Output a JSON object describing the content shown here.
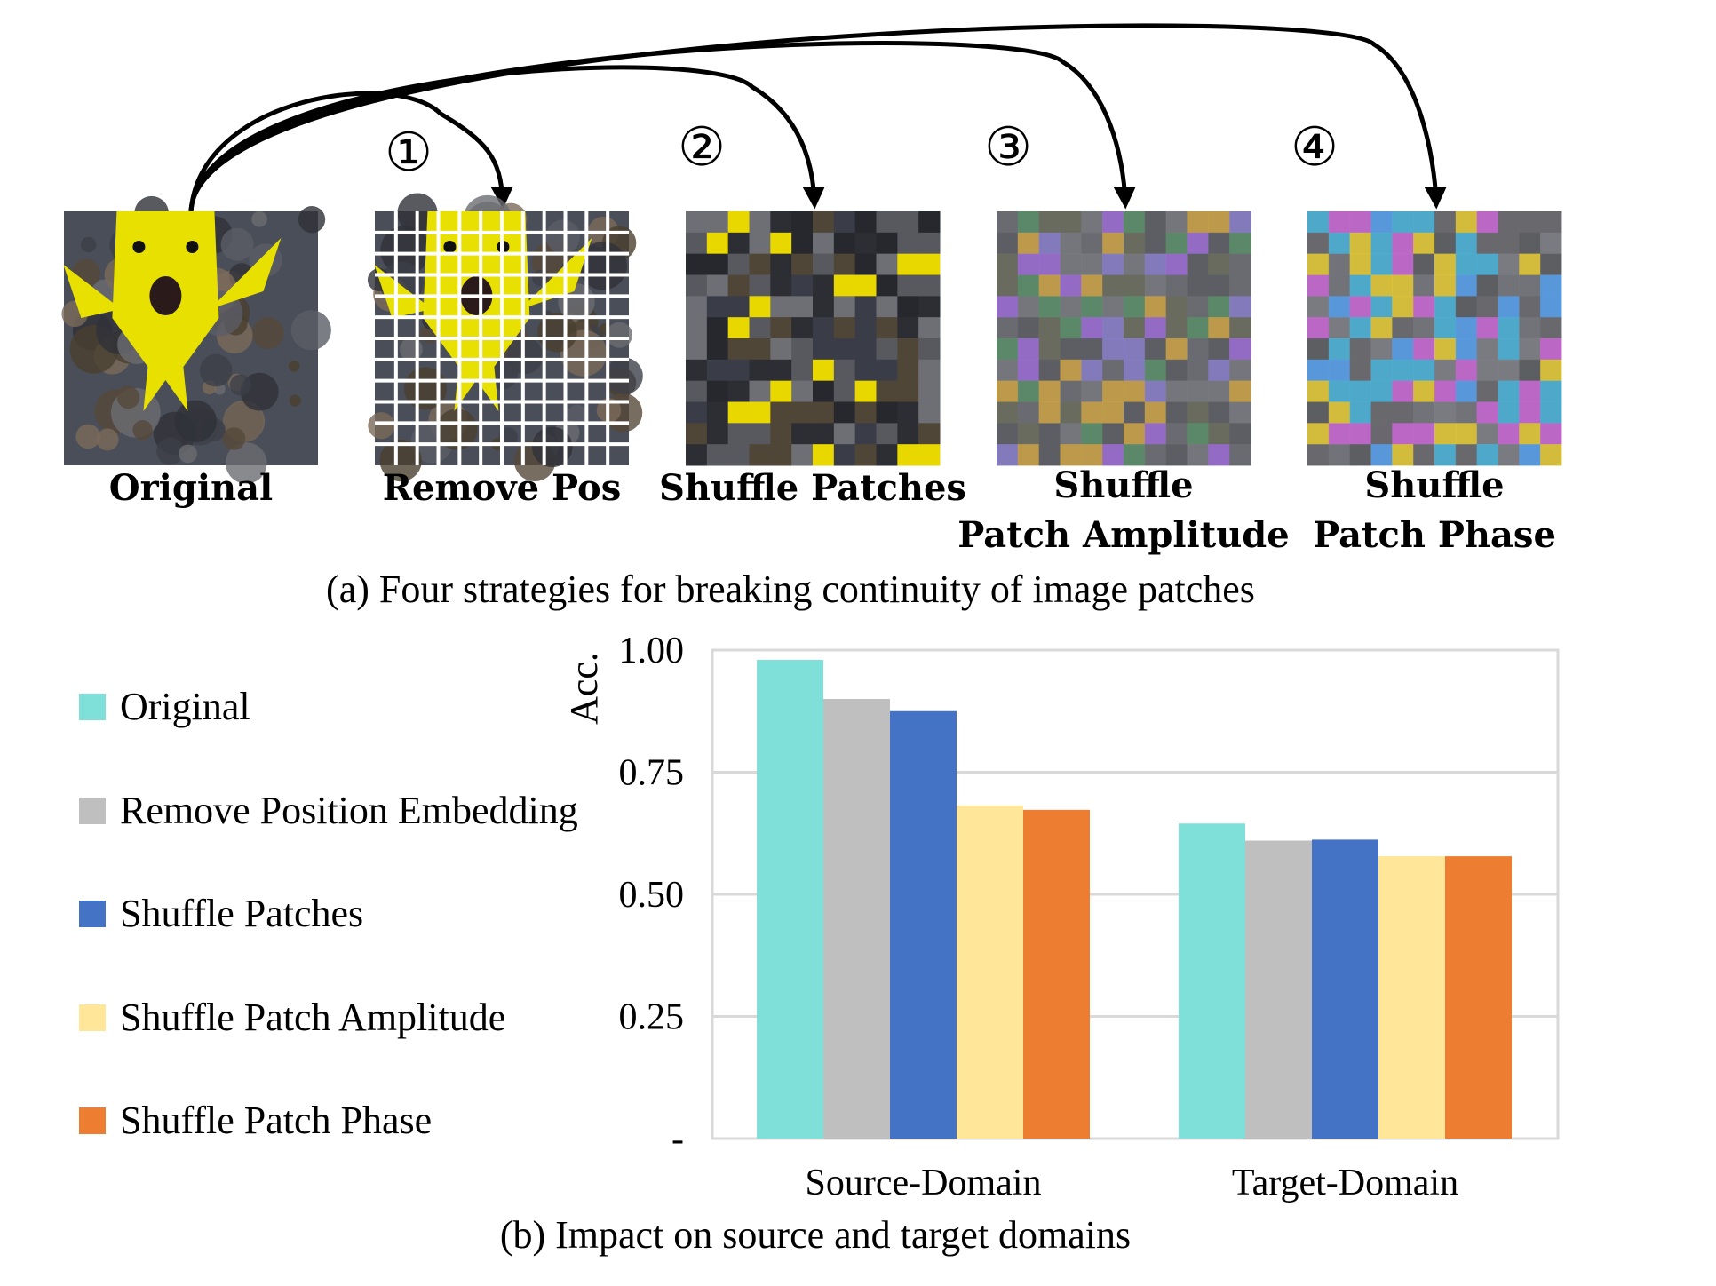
{
  "panel_a": {
    "caption": "(a) Four strategies for breaking continuity of image patches",
    "images": [
      {
        "label_lines": [
          "Original"
        ],
        "variant": "original"
      },
      {
        "label_lines": [
          "Remove Pos"
        ],
        "variant": "grid"
      },
      {
        "label_lines": [
          "Shuffle Patches"
        ],
        "variant": "shuffle"
      },
      {
        "label_lines": [
          "Shuffle",
          "Patch Amplitude"
        ],
        "variant": "amplitude"
      },
      {
        "label_lines": [
          "Shuffle",
          "Patch Phase"
        ],
        "variant": "phase"
      }
    ],
    "strategy_markers": [
      "①",
      "②",
      "③",
      "④"
    ]
  },
  "colors": {
    "original": "#7fe0d9",
    "remove_pos": "#bfbfbf",
    "shuffle_patches": "#4472c4",
    "amplitude": "#ffe699",
    "phase": "#ed7d31",
    "grid": "#d9d9d9",
    "fish": "#e8e000",
    "reef": "#4a4e58"
  },
  "chart_data": {
    "type": "bar",
    "title": "(b) Impact on source and target domains",
    "ylabel": "Acc.",
    "xlabel": "",
    "categories": [
      "Source-Domain",
      "Target-Domain"
    ],
    "ylim": [
      0,
      1.0
    ],
    "yticks": [
      0,
      0.25,
      0.5,
      0.75,
      1.0
    ],
    "ytick_labels": [
      "-",
      "0.25",
      "0.50",
      "0.75",
      "1.00"
    ],
    "grid": true,
    "legend": "left",
    "series": [
      {
        "name": "Original",
        "color_key": "original",
        "values": [
          0.98,
          0.645
        ]
      },
      {
        "name": "Remove Position Embedding",
        "color_key": "remove_pos",
        "values": [
          0.9,
          0.61
        ]
      },
      {
        "name": "Shuffle Patches",
        "color_key": "shuffle_patches",
        "values": [
          0.875,
          0.612
        ]
      },
      {
        "name": "Shuffle Patch Amplitude",
        "color_key": "amplitude",
        "values": [
          0.682,
          0.578
        ]
      },
      {
        "name": "Shuffle Patch Phase",
        "color_key": "phase",
        "values": [
          0.673,
          0.578
        ]
      }
    ]
  }
}
